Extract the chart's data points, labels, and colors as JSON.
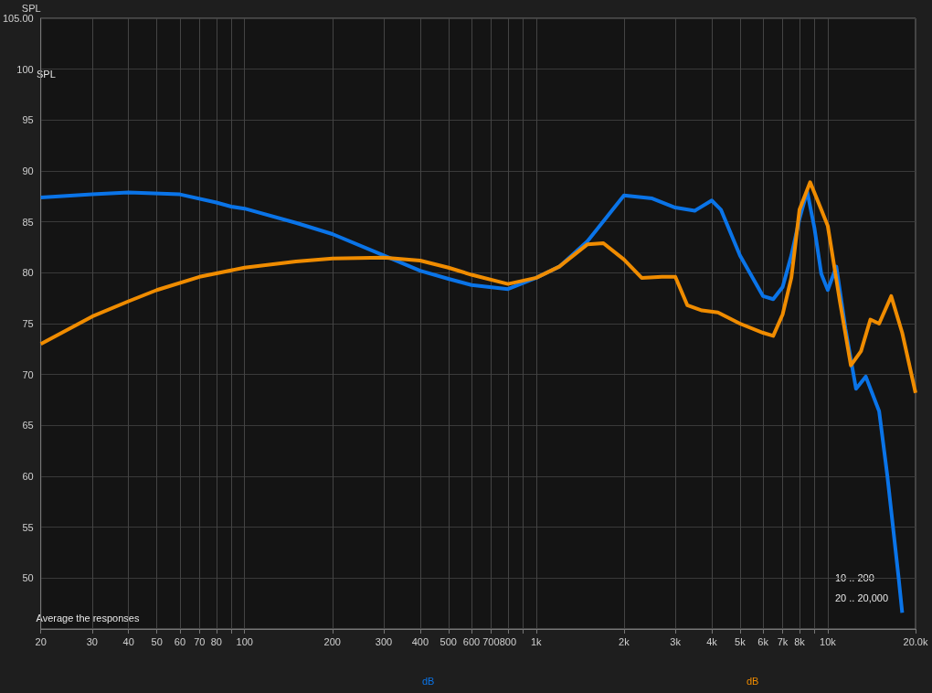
{
  "chart_data": {
    "type": "line",
    "ylabel": "SPL",
    "log": "x",
    "grid": true,
    "marker": "none",
    "line_style": "solid",
    "xlim": [
      20,
      20000
    ],
    "ylim": [
      45,
      105
    ],
    "xticks": [
      20,
      30,
      40,
      50,
      60,
      70,
      80,
      {
        "value": 90,
        "label": null
      },
      100,
      200,
      300,
      400,
      500,
      600,
      700,
      800,
      {
        "value": 900,
        "label": null
      },
      {
        "value": 1000,
        "label": "1k"
      },
      {
        "value": 2000,
        "label": "2k"
      },
      {
        "value": 3000,
        "label": "3k"
      },
      {
        "value": 4000,
        "label": "4k"
      },
      {
        "value": 5000,
        "label": "5k"
      },
      {
        "value": 6000,
        "label": "6k"
      },
      {
        "value": 7000,
        "label": "7k"
      },
      {
        "value": 8000,
        "label": "8k"
      },
      {
        "value": 9000,
        "label": null
      },
      {
        "value": 10000,
        "label": "10k"
      },
      {
        "value": 20000,
        "label": "20.0k"
      }
    ],
    "yticks": [
      50,
      55,
      60,
      65,
      70,
      75,
      80,
      85,
      90,
      95,
      100,
      {
        "value": 105,
        "label": "105.00"
      }
    ],
    "annotations": [
      "SPL",
      "Average the responses",
      "10 .. 200",
      "20 .. 20,000",
      "dB",
      "dB"
    ],
    "series": [
      {
        "color": "#0a74e8",
        "x": [
          20,
          30,
          40,
          60,
          80,
          90,
          100,
          150,
          200,
          300,
          400,
          500,
          600,
          800,
          1000,
          1200,
          1500,
          2000,
          2500,
          3000,
          3500,
          4000,
          4300,
          5000,
          6000,
          6500,
          7000,
          7500,
          8000,
          8500,
          9000,
          9500,
          10000,
          10700,
          11500,
          12500,
          13500,
          15000,
          16000,
          17500,
          18000
        ],
        "values": [
          87.4,
          87.7,
          87.9,
          87.7,
          86.9,
          86.5,
          86.3,
          84.9,
          83.8,
          81.7,
          80.2,
          79.4,
          78.8,
          78.4,
          79.5,
          80.6,
          83.1,
          87.6,
          87.3,
          86.4,
          86.1,
          87.1,
          86.2,
          81.7,
          77.7,
          77.4,
          78.6,
          81.7,
          85.3,
          88.0,
          84.4,
          79.9,
          78.3,
          80.6,
          74.5,
          68.6,
          69.8,
          66.4,
          60.1,
          50,
          46.6
        ]
      },
      {
        "color": "#f08c00",
        "x": [
          20,
          30,
          40,
          50,
          70,
          100,
          150,
          200,
          300,
          400,
          500,
          600,
          800,
          1000,
          1200,
          1500,
          1700,
          2000,
          2300,
          2700,
          3000,
          3300,
          3700,
          4200,
          5000,
          6000,
          6500,
          7000,
          7500,
          8000,
          8700,
          9500,
          10000,
          11000,
          12000,
          13000,
          14000,
          15000,
          16500,
          18000,
          20000
        ],
        "values": [
          73.0,
          75.7,
          77.2,
          78.3,
          79.6,
          80.5,
          81.1,
          81.4,
          81.5,
          81.2,
          80.5,
          79.8,
          78.9,
          79.5,
          80.6,
          82.8,
          82.9,
          81.3,
          79.5,
          79.6,
          79.6,
          76.8,
          76.3,
          76.1,
          75.0,
          74.1,
          73.8,
          75.9,
          79.5,
          86.2,
          88.9,
          86.2,
          84.6,
          77.2,
          70.9,
          72.3,
          75.4,
          75.0,
          77.7,
          74.1,
          68.2
        ]
      }
    ]
  }
}
